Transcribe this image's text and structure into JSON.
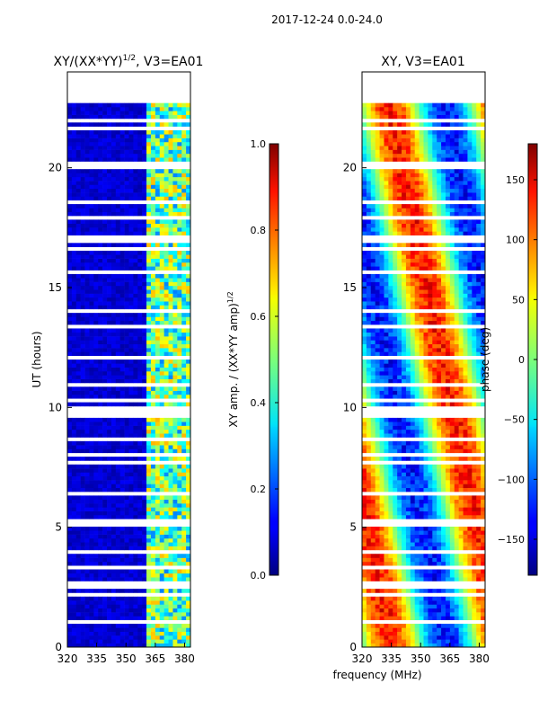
{
  "figure": {
    "suptitle": "2017-12-24 0.0-24.0",
    "xlabel": "frequency (MHz)"
  },
  "chart_data": [
    {
      "type": "heatmap",
      "id": "amplitude",
      "title_prefix": "XY/(XX*YY)",
      "title_exponent": "1/2",
      "title_suffix": ", V3=EA01",
      "xlabel": "frequency (MHz)",
      "ylabel": "UT (hours)",
      "xlim": [
        320,
        383
      ],
      "ylim": [
        0,
        24
      ],
      "xticks": [
        320,
        335,
        350,
        365,
        380
      ],
      "yticks": [
        0,
        5,
        10,
        15,
        20
      ],
      "data_time_range_hours": [
        0,
        22.7
      ],
      "bright_band_mhz": [
        360,
        383
      ],
      "colorbar": {
        "label_prefix": "XY amp. / (XX*YY amp)",
        "label_exponent": "1/2",
        "range": [
          0.0,
          1.0
        ],
        "ticks": [
          "0.0",
          "0.2",
          "0.4",
          "0.6",
          "0.8",
          "1.0"
        ],
        "colormap": "jet"
      }
    },
    {
      "type": "heatmap",
      "id": "phase",
      "title": "XY, V3=EA01",
      "xlabel": "frequency (MHz)",
      "ylabel": "",
      "xlim": [
        320,
        383
      ],
      "ylim": [
        0,
        24
      ],
      "xticks": [
        320,
        335,
        350,
        365,
        380
      ],
      "yticks": [
        0,
        5,
        10,
        15,
        20
      ],
      "data_time_range_hours": [
        0,
        22.7
      ],
      "colorbar": {
        "label": "phase (deg)",
        "range": [
          -180,
          180
        ],
        "ticks": [
          "−150",
          "−100",
          "−50",
          "0",
          "50",
          "100",
          "150"
        ],
        "tick_values": [
          -150,
          -100,
          -50,
          0,
          50,
          100,
          150
        ],
        "colormap": "jet"
      }
    }
  ]
}
